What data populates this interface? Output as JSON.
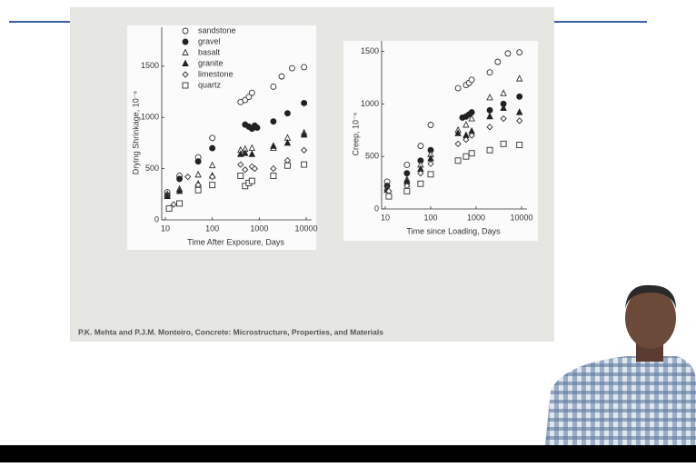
{
  "chart_data": [
    {
      "type": "scatter",
      "xlabel": "Time After Exposure, Days",
      "ylabel": "Drying Shrinkage, 10⁻⁶",
      "xscale": "log",
      "xlim": [
        10,
        10000
      ],
      "xticks": [
        10,
        100,
        1000,
        10000
      ],
      "ylim": [
        0,
        1880
      ],
      "yticks": [
        0,
        500,
        1000,
        1500
      ],
      "legend": "top",
      "series": [
        {
          "name": "sandstone",
          "marker": "circle-open",
          "color": "#333",
          "x": [
            11,
            20,
            50,
            100,
            400,
            500,
            600,
            700,
            2000,
            3000,
            5000,
            9000
          ],
          "values": [
            270,
            430,
            610,
            800,
            1150,
            1170,
            1200,
            1240,
            1300,
            1400,
            1480,
            1490
          ]
        },
        {
          "name": "gravel",
          "marker": "circle-filled",
          "color": "#222",
          "x": [
            11,
            20,
            50,
            100,
            500,
            600,
            700,
            800,
            900,
            2000,
            4000,
            9000
          ],
          "values": [
            240,
            400,
            570,
            700,
            930,
            910,
            890,
            920,
            900,
            960,
            1040,
            1140
          ]
        },
        {
          "name": "basalt",
          "marker": "triangle-open",
          "color": "#333",
          "x": [
            11,
            20,
            50,
            100,
            400,
            500,
            700,
            2000,
            4000,
            9000
          ],
          "values": [
            250,
            300,
            440,
            530,
            680,
            690,
            700,
            700,
            800,
            850
          ]
        },
        {
          "name": "granite",
          "marker": "triangle-filled",
          "color": "#222",
          "x": [
            11,
            20,
            50,
            100,
            400,
            500,
            700,
            2000,
            4000,
            9000
          ],
          "values": [
            230,
            280,
            350,
            430,
            640,
            650,
            640,
            720,
            750,
            830
          ]
        },
        {
          "name": "limestone",
          "marker": "diamond-open",
          "color": "#333",
          "x": [
            15,
            30,
            50,
            100,
            400,
            500,
            700,
            800,
            2000,
            4000,
            9000
          ],
          "values": [
            150,
            420,
            340,
            420,
            540,
            490,
            520,
            500,
            500,
            580,
            680
          ]
        },
        {
          "name": "quartz",
          "marker": "square-open",
          "color": "#333",
          "x": [
            12,
            20,
            50,
            100,
            400,
            500,
            600,
            700,
            2000,
            4000,
            9000
          ],
          "values": [
            110,
            160,
            290,
            340,
            430,
            330,
            360,
            380,
            430,
            530,
            540
          ]
        }
      ]
    },
    {
      "type": "scatter",
      "xlabel": "Time since Loading, Days",
      "ylabel": "Creep, 10⁻⁶",
      "xscale": "log",
      "xlim": [
        10,
        10000
      ],
      "xticks": [
        10,
        100,
        1000,
        10000
      ],
      "ylim": [
        0,
        1600
      ],
      "yticks": [
        0,
        500,
        1000,
        1500
      ],
      "series": [
        {
          "marker": "circle-open",
          "color": "#333",
          "x": [
            11,
            30,
            60,
            100,
            400,
            600,
            700,
            800,
            2000,
            3000,
            5000,
            9000
          ],
          "values": [
            260,
            420,
            600,
            800,
            1150,
            1180,
            1200,
            1230,
            1300,
            1400,
            1480,
            1490
          ]
        },
        {
          "marker": "circle-filled",
          "color": "#222",
          "x": [
            11,
            30,
            60,
            100,
            500,
            600,
            700,
            800,
            2000,
            4000,
            9000
          ],
          "values": [
            220,
            340,
            460,
            560,
            870,
            880,
            900,
            920,
            940,
            1000,
            1070
          ]
        },
        {
          "marker": "triangle-open",
          "color": "#333",
          "x": [
            11,
            30,
            60,
            100,
            400,
            600,
            800,
            2000,
            4000,
            9000
          ],
          "values": [
            200,
            280,
            420,
            520,
            750,
            800,
            860,
            1060,
            1100,
            1240
          ]
        },
        {
          "marker": "triangle-filled",
          "color": "#222",
          "x": [
            11,
            30,
            60,
            100,
            400,
            600,
            800,
            2000,
            4000,
            9000
          ],
          "values": [
            180,
            260,
            380,
            480,
            720,
            700,
            740,
            880,
            960,
            920
          ]
        },
        {
          "marker": "diamond-open",
          "color": "#333",
          "x": [
            12,
            30,
            60,
            100,
            400,
            600,
            800,
            2000,
            4000,
            9000
          ],
          "values": [
            170,
            220,
            340,
            430,
            620,
            660,
            700,
            780,
            860,
            840
          ]
        },
        {
          "marker": "square-open",
          "color": "#333",
          "x": [
            12,
            30,
            60,
            100,
            400,
            600,
            800,
            2000,
            4000,
            9000
          ],
          "values": [
            120,
            170,
            240,
            330,
            460,
            500,
            530,
            560,
            620,
            610
          ]
        }
      ]
    }
  ],
  "caption": "P.K. Mehta and P.J.M. Monteiro, Concrete: Microstructure,  Properties,  and Materials"
}
